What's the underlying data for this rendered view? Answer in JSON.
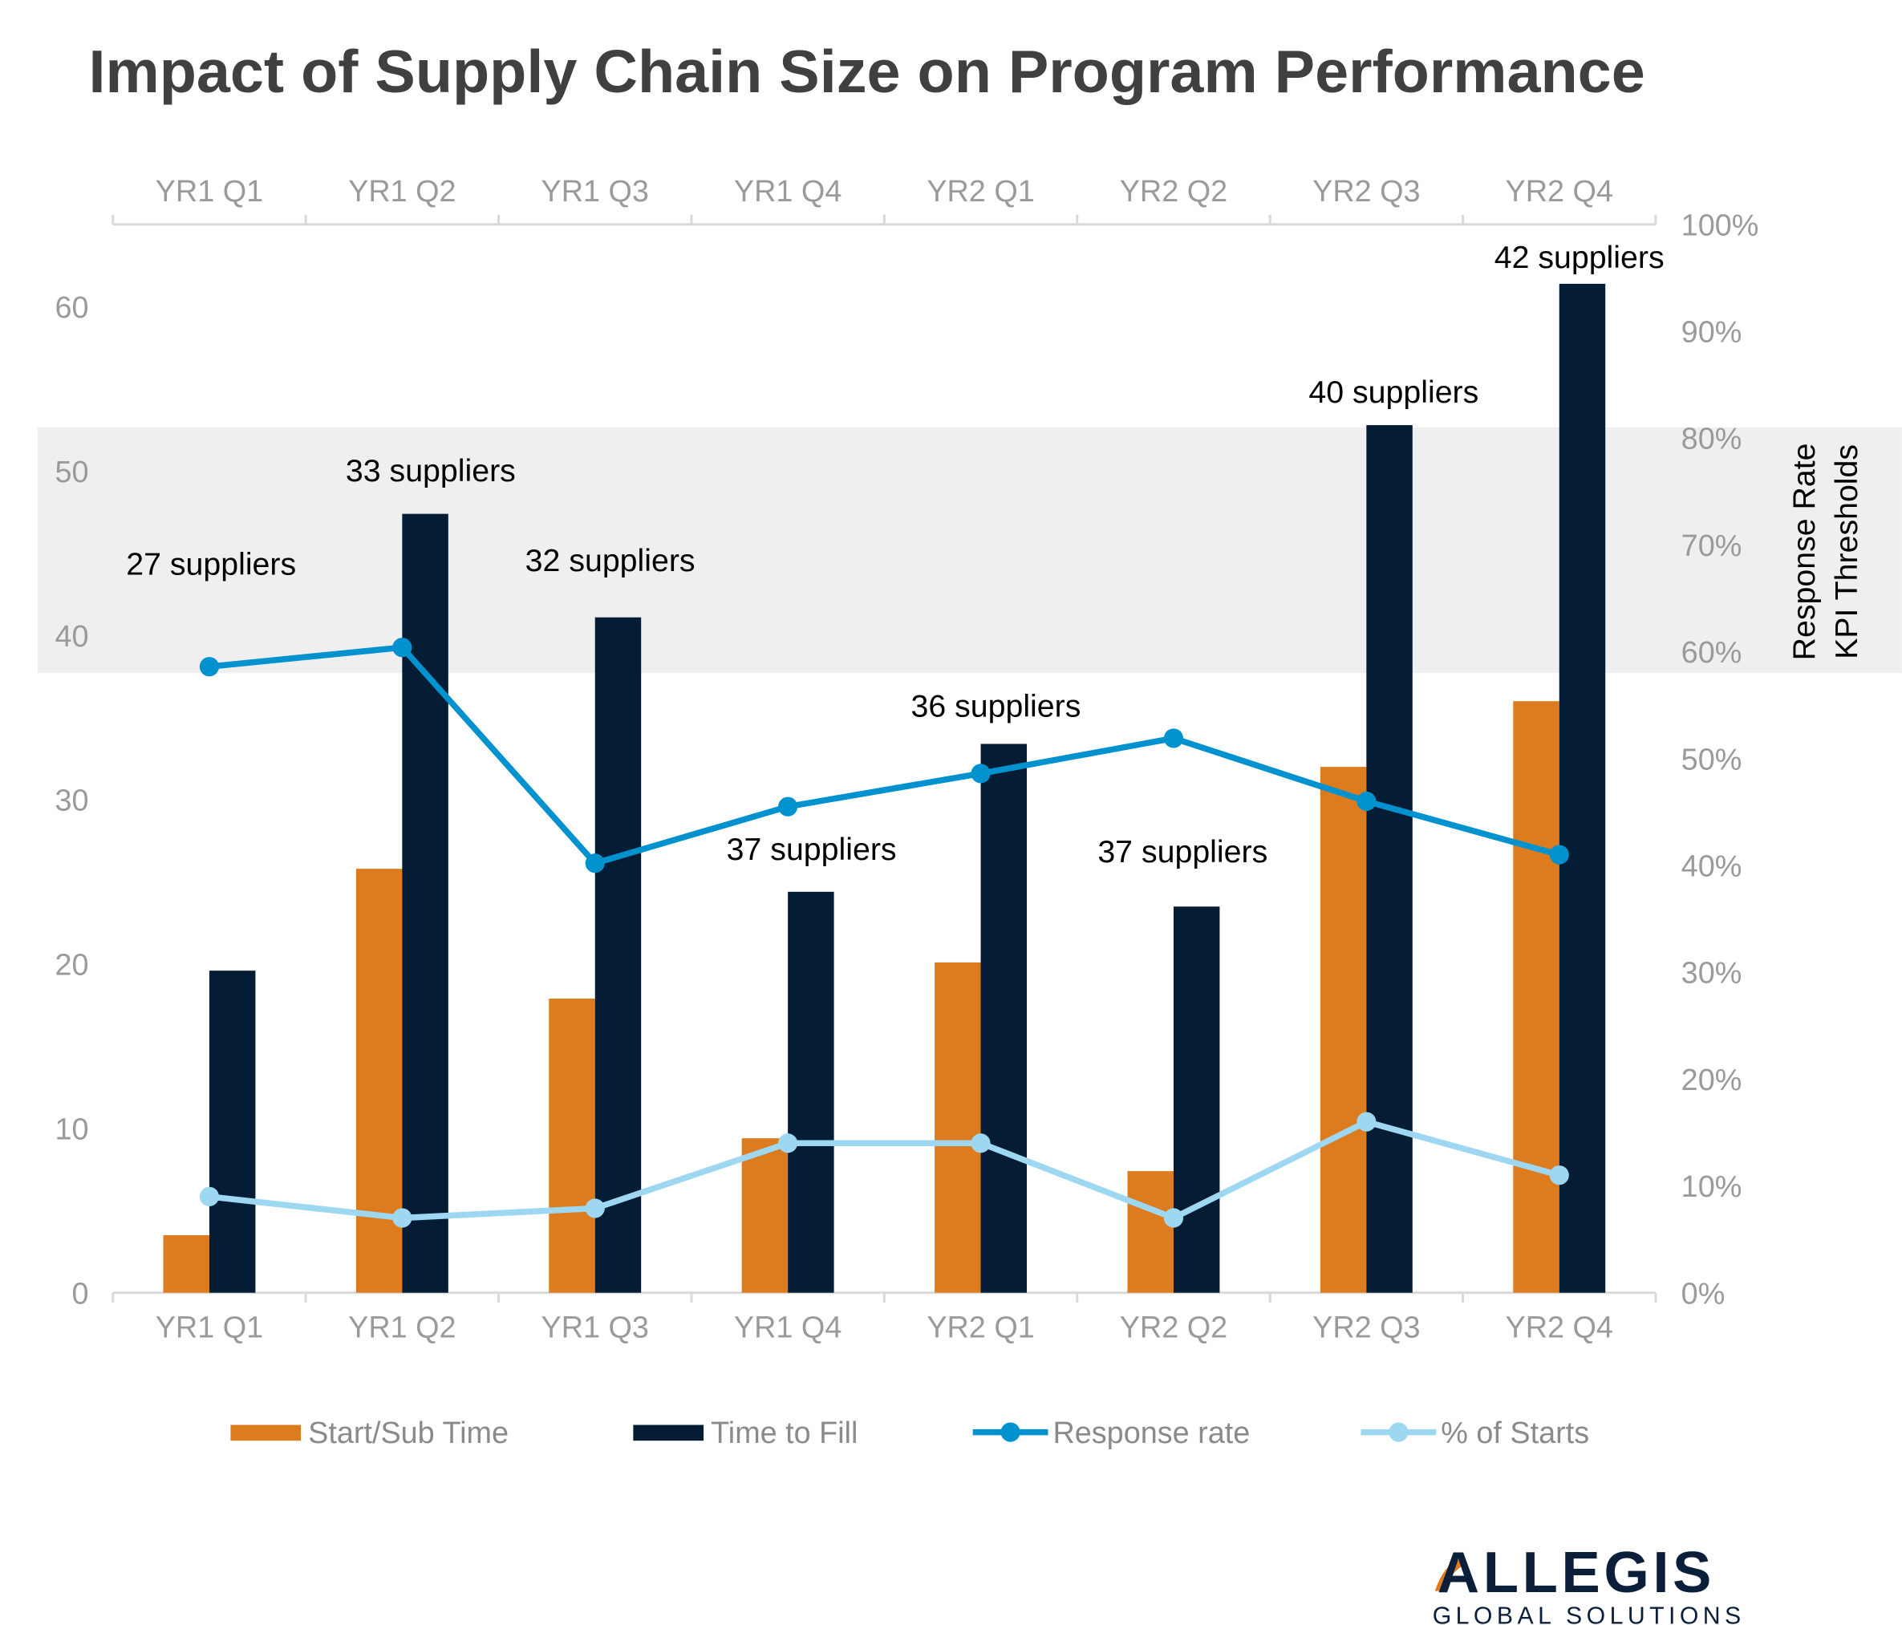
{
  "chart_data": {
    "type": "bar",
    "title": "Impact of Supply Chain Size on Program Performance",
    "categories": [
      "YR1 Q1",
      "YR1 Q2",
      "YR1 Q3",
      "YR1 Q4",
      "YR2 Q1",
      "YR2 Q2",
      "YR2 Q3",
      "YR2 Q4"
    ],
    "left_axis": {
      "ylim": [
        0,
        60
      ],
      "ticks": [
        "0",
        "10",
        "20",
        "30",
        "40",
        "50",
        "60"
      ]
    },
    "right_axis": {
      "ylim": [
        0,
        100
      ],
      "ticks": [
        "0%",
        "10%",
        "20%",
        "30%",
        "40%",
        "50%",
        "60%",
        "70%",
        "80%",
        "90%",
        "100%"
      ],
      "title_lines": [
        "Response Rate",
        "KPI Thresholds"
      ]
    },
    "kpi_band": {
      "from_percent": 58,
      "to_percent": 81,
      "color": "#efefef"
    },
    "series": [
      {
        "name": "Start/Sub Time",
        "type": "bar",
        "axis": "left",
        "color": "#dd7c1f",
        "values": [
          3.5,
          25.8,
          17.9,
          9.4,
          20.1,
          7.4,
          32.0,
          36.0
        ]
      },
      {
        "name": "Time to Fill",
        "type": "bar",
        "axis": "left",
        "color": "#041c34",
        "values": [
          19.6,
          47.4,
          41.1,
          24.4,
          33.4,
          23.5,
          52.8,
          61.4
        ]
      },
      {
        "name": "Response rate",
        "type": "line",
        "axis": "right",
        "color": "#0091cf",
        "values": [
          58.6,
          60.4,
          40.2,
          45.5,
          48.6,
          51.9,
          46.0,
          41.0
        ]
      },
      {
        "name": "% of Starts",
        "type": "line",
        "axis": "right",
        "color": "#9dd7f2",
        "values": [
          9.0,
          7.0,
          7.9,
          14.0,
          14.0,
          7.0,
          16.0,
          11.0
        ]
      }
    ],
    "annotations": [
      "27 suppliers",
      "33 suppliers",
      "32 suppliers",
      "37 suppliers",
      "36 suppliers",
      "37 suppliers",
      "40 suppliers",
      "42 suppliers"
    ],
    "legend_placement": "bottom",
    "grid": false
  },
  "logo": {
    "name": "ALLEGIS",
    "sub": "GLOBAL SOLUTIONS",
    "color": "#0b1f3a",
    "accent": "#e07b24"
  }
}
